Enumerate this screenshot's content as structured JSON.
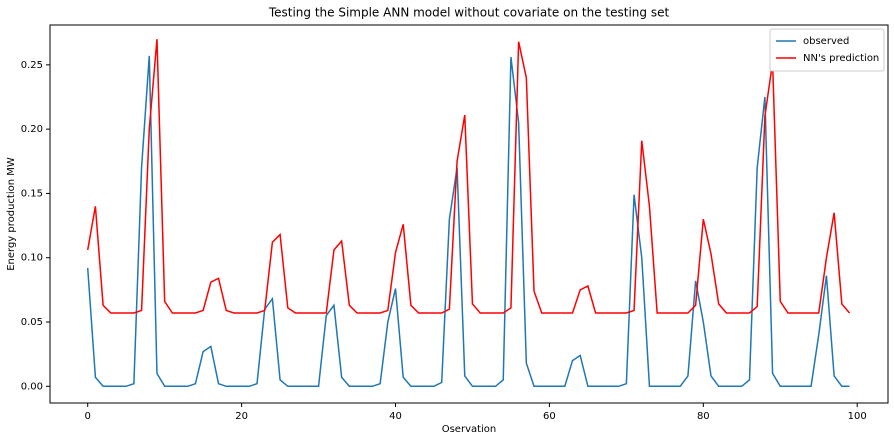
{
  "chart_data": {
    "type": "line",
    "title": "Testing the Simple ANN model without covariate on the testing set",
    "x_label": "Oservation",
    "y_label": "Energy production MW",
    "x": [
      0,
      1,
      2,
      3,
      4,
      5,
      6,
      7,
      8,
      9,
      10,
      11,
      12,
      13,
      14,
      15,
      16,
      17,
      18,
      19,
      20,
      21,
      22,
      23,
      24,
      25,
      26,
      27,
      28,
      29,
      30,
      31,
      32,
      33,
      34,
      35,
      36,
      37,
      38,
      39,
      40,
      41,
      42,
      43,
      44,
      45,
      46,
      47,
      48,
      49,
      50,
      51,
      52,
      53,
      54,
      55,
      56,
      57,
      58,
      59,
      60,
      61,
      62,
      63,
      64,
      65,
      66,
      67,
      68,
      69,
      70,
      71,
      72,
      73,
      74,
      75,
      76,
      77,
      78,
      79,
      80,
      81,
      82,
      83,
      84,
      85,
      86,
      87,
      88,
      89,
      90,
      91,
      92,
      93,
      94,
      95,
      96,
      97,
      98,
      99
    ],
    "series": [
      {
        "name": "observed",
        "color": "#1f77b4",
        "values": [
          0.092,
          0.007,
          0,
          0,
          0,
          0,
          0.002,
          0.17,
          0.257,
          0.01,
          0,
          0,
          0,
          0,
          0.002,
          0.027,
          0.031,
          0.002,
          0,
          0,
          0,
          0,
          0.002,
          0.06,
          0.068,
          0.005,
          0,
          0,
          0,
          0,
          0,
          0.055,
          0.063,
          0.007,
          0,
          0,
          0,
          0,
          0.002,
          0.05,
          0.076,
          0.007,
          0,
          0,
          0,
          0,
          0.003,
          0.13,
          0.17,
          0.008,
          0,
          0,
          0,
          0,
          0.005,
          0.256,
          0.205,
          0.018,
          0,
          0,
          0,
          0,
          0,
          0.02,
          0.024,
          0,
          0,
          0,
          0,
          0,
          0.002,
          0.149,
          0.1,
          0,
          0,
          0,
          0,
          0,
          0.008,
          0.082,
          0.05,
          0.008,
          0,
          0,
          0,
          0,
          0.005,
          0.17,
          0.225,
          0.01,
          0,
          0,
          0,
          0,
          0,
          0.04,
          0.086,
          0.008,
          0,
          0
        ]
      },
      {
        "name": "NN's prediction",
        "color": "#ff0000",
        "values": [
          0.106,
          0.14,
          0.063,
          0.057,
          0.057,
          0.057,
          0.057,
          0.059,
          0.2,
          0.27,
          0.066,
          0.057,
          0.057,
          0.057,
          0.057,
          0.059,
          0.081,
          0.084,
          0.059,
          0.057,
          0.057,
          0.057,
          0.057,
          0.059,
          0.112,
          0.118,
          0.061,
          0.057,
          0.057,
          0.057,
          0.057,
          0.057,
          0.106,
          0.113,
          0.063,
          0.057,
          0.057,
          0.057,
          0.057,
          0.059,
          0.104,
          0.126,
          0.063,
          0.057,
          0.057,
          0.057,
          0.057,
          0.06,
          0.175,
          0.211,
          0.064,
          0.057,
          0.057,
          0.057,
          0.057,
          0.061,
          0.268,
          0.24,
          0.074,
          0.057,
          0.057,
          0.057,
          0.057,
          0.057,
          0.075,
          0.078,
          0.057,
          0.057,
          0.057,
          0.057,
          0.057,
          0.059,
          0.191,
          0.14,
          0.057,
          0.057,
          0.057,
          0.057,
          0.057,
          0.063,
          0.13,
          0.103,
          0.064,
          0.057,
          0.057,
          0.057,
          0.057,
          0.062,
          0.21,
          0.252,
          0.066,
          0.057,
          0.057,
          0.057,
          0.057,
          0.057,
          0.1,
          0.135,
          0.064,
          0.057
        ]
      }
    ],
    "xlim": [
      -4.9,
      104
    ],
    "ylim": [
      -0.013,
      0.281
    ],
    "xticks": [
      0,
      20,
      40,
      60,
      80,
      100
    ],
    "yticks": [
      {
        "value": 0,
        "label": "0.00"
      },
      {
        "value": 0.05,
        "label": "0.05"
      },
      {
        "value": 0.1,
        "label": "0.10"
      },
      {
        "value": 0.15,
        "label": "0.15"
      },
      {
        "value": 0.2,
        "label": "0.20"
      },
      {
        "value": 0.25,
        "label": "0.25"
      }
    ],
    "grid": false,
    "legend": "upper right"
  }
}
